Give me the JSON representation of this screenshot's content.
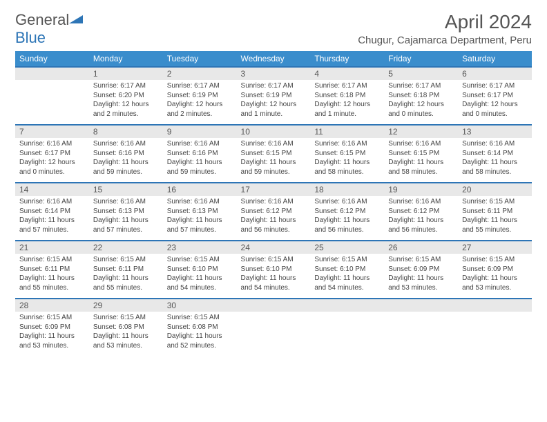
{
  "logo": {
    "text1": "General",
    "text2": "Blue"
  },
  "header": {
    "month_title": "April 2024",
    "location": "Chugur, Cajamarca Department, Peru"
  },
  "colors": {
    "header_bg": "#3a8dcc",
    "row_divider": "#2d75b6",
    "daynum_bg": "#e8e8e8",
    "text": "#555"
  },
  "day_names": [
    "Sunday",
    "Monday",
    "Tuesday",
    "Wednesday",
    "Thursday",
    "Friday",
    "Saturday"
  ],
  "weeks": [
    {
      "nums": [
        "",
        "1",
        "2",
        "3",
        "4",
        "5",
        "6"
      ],
      "details": [
        "",
        "Sunrise: 6:17 AM\nSunset: 6:20 PM\nDaylight: 12 hours and 2 minutes.",
        "Sunrise: 6:17 AM\nSunset: 6:19 PM\nDaylight: 12 hours and 2 minutes.",
        "Sunrise: 6:17 AM\nSunset: 6:19 PM\nDaylight: 12 hours and 1 minute.",
        "Sunrise: 6:17 AM\nSunset: 6:18 PM\nDaylight: 12 hours and 1 minute.",
        "Sunrise: 6:17 AM\nSunset: 6:18 PM\nDaylight: 12 hours and 0 minutes.",
        "Sunrise: 6:17 AM\nSunset: 6:17 PM\nDaylight: 12 hours and 0 minutes."
      ]
    },
    {
      "nums": [
        "7",
        "8",
        "9",
        "10",
        "11",
        "12",
        "13"
      ],
      "details": [
        "Sunrise: 6:16 AM\nSunset: 6:17 PM\nDaylight: 12 hours and 0 minutes.",
        "Sunrise: 6:16 AM\nSunset: 6:16 PM\nDaylight: 11 hours and 59 minutes.",
        "Sunrise: 6:16 AM\nSunset: 6:16 PM\nDaylight: 11 hours and 59 minutes.",
        "Sunrise: 6:16 AM\nSunset: 6:15 PM\nDaylight: 11 hours and 59 minutes.",
        "Sunrise: 6:16 AM\nSunset: 6:15 PM\nDaylight: 11 hours and 58 minutes.",
        "Sunrise: 6:16 AM\nSunset: 6:15 PM\nDaylight: 11 hours and 58 minutes.",
        "Sunrise: 6:16 AM\nSunset: 6:14 PM\nDaylight: 11 hours and 58 minutes."
      ]
    },
    {
      "nums": [
        "14",
        "15",
        "16",
        "17",
        "18",
        "19",
        "20"
      ],
      "details": [
        "Sunrise: 6:16 AM\nSunset: 6:14 PM\nDaylight: 11 hours and 57 minutes.",
        "Sunrise: 6:16 AM\nSunset: 6:13 PM\nDaylight: 11 hours and 57 minutes.",
        "Sunrise: 6:16 AM\nSunset: 6:13 PM\nDaylight: 11 hours and 57 minutes.",
        "Sunrise: 6:16 AM\nSunset: 6:12 PM\nDaylight: 11 hours and 56 minutes.",
        "Sunrise: 6:16 AM\nSunset: 6:12 PM\nDaylight: 11 hours and 56 minutes.",
        "Sunrise: 6:16 AM\nSunset: 6:12 PM\nDaylight: 11 hours and 56 minutes.",
        "Sunrise: 6:15 AM\nSunset: 6:11 PM\nDaylight: 11 hours and 55 minutes."
      ]
    },
    {
      "nums": [
        "21",
        "22",
        "23",
        "24",
        "25",
        "26",
        "27"
      ],
      "details": [
        "Sunrise: 6:15 AM\nSunset: 6:11 PM\nDaylight: 11 hours and 55 minutes.",
        "Sunrise: 6:15 AM\nSunset: 6:11 PM\nDaylight: 11 hours and 55 minutes.",
        "Sunrise: 6:15 AM\nSunset: 6:10 PM\nDaylight: 11 hours and 54 minutes.",
        "Sunrise: 6:15 AM\nSunset: 6:10 PM\nDaylight: 11 hours and 54 minutes.",
        "Sunrise: 6:15 AM\nSunset: 6:10 PM\nDaylight: 11 hours and 54 minutes.",
        "Sunrise: 6:15 AM\nSunset: 6:09 PM\nDaylight: 11 hours and 53 minutes.",
        "Sunrise: 6:15 AM\nSunset: 6:09 PM\nDaylight: 11 hours and 53 minutes."
      ]
    },
    {
      "nums": [
        "28",
        "29",
        "30",
        "",
        "",
        "",
        ""
      ],
      "details": [
        "Sunrise: 6:15 AM\nSunset: 6:09 PM\nDaylight: 11 hours and 53 minutes.",
        "Sunrise: 6:15 AM\nSunset: 6:08 PM\nDaylight: 11 hours and 53 minutes.",
        "Sunrise: 6:15 AM\nSunset: 6:08 PM\nDaylight: 11 hours and 52 minutes.",
        "",
        "",
        "",
        ""
      ]
    }
  ]
}
